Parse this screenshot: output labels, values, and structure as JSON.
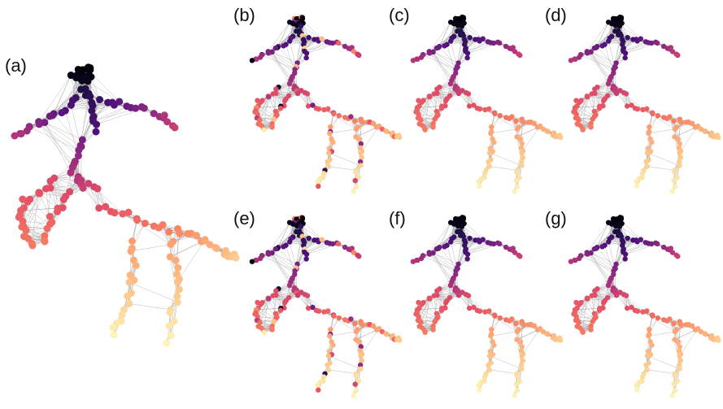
{
  "figure": {
    "panels": [
      {
        "id": "a",
        "label": "(a)",
        "coloring": "smooth"
      },
      {
        "id": "b",
        "label": "(b)",
        "coloring": "scrambled"
      },
      {
        "id": "c",
        "label": "(c)",
        "coloring": "smooth"
      },
      {
        "id": "d",
        "label": "(d)",
        "coloring": "smooth"
      },
      {
        "id": "e",
        "label": "(e)",
        "coloring": "scrambled"
      },
      {
        "id": "f",
        "label": "(f)",
        "coloring": "smooth"
      },
      {
        "id": "g",
        "label": "(g)",
        "coloring": "smooth"
      }
    ],
    "colormap": "magma",
    "edge_color": "#9e9e9e",
    "background": "#ffffff"
  }
}
